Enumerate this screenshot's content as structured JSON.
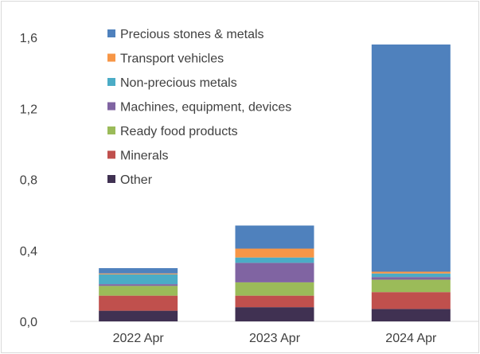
{
  "chart_data": {
    "type": "bar",
    "stacked": true,
    "categories": [
      "2022 Apr",
      "2023 Apr",
      "2024 Apr"
    ],
    "ylim": [
      0,
      1.6
    ],
    "yticks": [
      "0,0",
      "0,4",
      "0,8",
      "1,2",
      "1,6"
    ],
    "ytick_values": [
      0,
      0.4,
      0.8,
      1.2,
      1.6
    ],
    "grid": false,
    "legend_position": "top-left",
    "series": [
      {
        "name": "Other",
        "color": "#403152",
        "values": [
          0.06,
          0.08,
          0.07
        ]
      },
      {
        "name": "Minerals",
        "color": "#C0504D",
        "values": [
          0.085,
          0.065,
          0.095
        ]
      },
      {
        "name": "Ready food products",
        "color": "#9BBB59",
        "values": [
          0.055,
          0.075,
          0.07
        ]
      },
      {
        "name": "Machines, equipment, devices",
        "color": "#8064A2",
        "values": [
          0.01,
          0.11,
          0.015
        ]
      },
      {
        "name": "Non-precious metals",
        "color": "#4BACC6",
        "values": [
          0.055,
          0.03,
          0.02
        ]
      },
      {
        "name": "Transport  vehicles",
        "color": "#F79646",
        "values": [
          0.005,
          0.05,
          0.01
        ]
      },
      {
        "name": "Precious stones & metals",
        "color": "#4F81BD",
        "values": [
          0.03,
          0.13,
          1.28
        ]
      }
    ]
  }
}
